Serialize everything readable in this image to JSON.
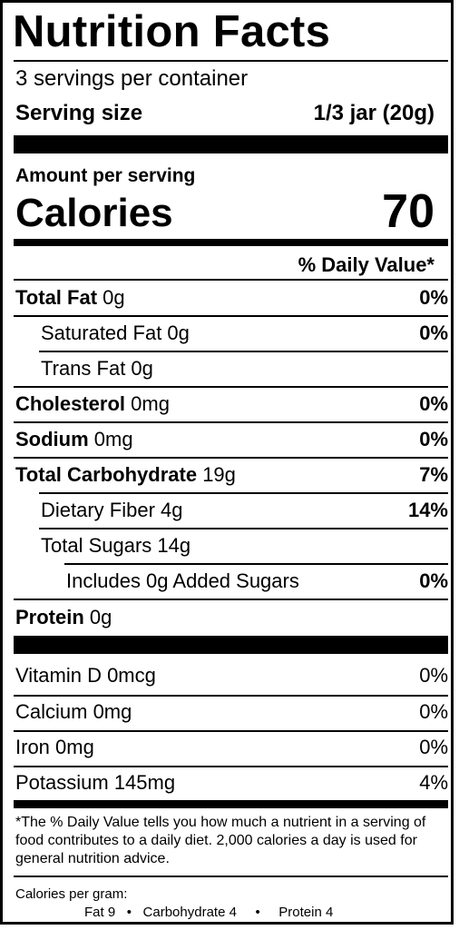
{
  "title": "Nutrition Facts",
  "servings_per_container": "3 servings per container",
  "serving_size_label": "Serving size",
  "serving_size_value": "1/3 jar (20g)",
  "amount_per_serving": "Amount per serving",
  "calories_label": "Calories",
  "calories_value": "70",
  "daily_value_header": "% Daily Value*",
  "nutrients": [
    {
      "bold": "Total Fat",
      "amount": "0g",
      "dv": "0%"
    },
    {
      "bold": "",
      "amount": "Saturated Fat 0g",
      "dv": "0%"
    },
    {
      "bold": "",
      "amount": "Trans Fat 0g",
      "dv": ""
    },
    {
      "bold": "Cholesterol",
      "amount": "0mg",
      "dv": "0%"
    },
    {
      "bold": "Sodium",
      "amount": "0mg",
      "dv": "0%"
    },
    {
      "bold": "Total Carbohydrate",
      "amount": "19g",
      "dv": "7%"
    },
    {
      "bold": "",
      "amount": "Dietary Fiber 4g",
      "dv": "14%"
    },
    {
      "bold": "",
      "amount": "Total Sugars 14g",
      "dv": ""
    },
    {
      "bold": "",
      "amount": "Includes 0g Added Sugars",
      "dv": "0%"
    },
    {
      "bold": "Protein",
      "amount": "0g",
      "dv": ""
    }
  ],
  "vitamins": [
    {
      "name": "Vitamin D 0mcg",
      "dv": "0%"
    },
    {
      "name": "Calcium 0mg",
      "dv": "0%"
    },
    {
      "name": "Iron 0mg",
      "dv": "0%"
    },
    {
      "name": "Potassium 145mg",
      "dv": "4%"
    }
  ],
  "footnote": "*The % Daily Value tells you how much a nutrient in a serving of food contributes to a daily diet. 2,000 calories a day is used for general nutrition advice.",
  "calories_per_gram_label": "Calories per gram:",
  "calories_per_gram": {
    "fat": "Fat 9",
    "carbohydrate": "Carbohydrate 4",
    "protein": "Protein 4",
    "separator": "•"
  }
}
